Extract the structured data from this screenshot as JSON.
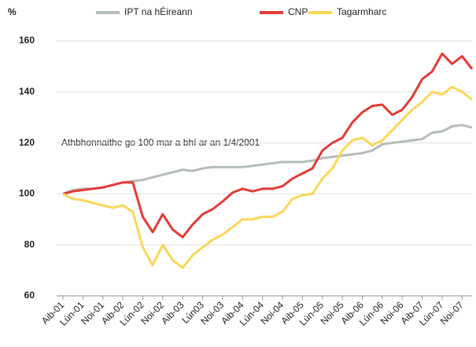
{
  "chart_data": {
    "type": "line",
    "y_label": "%",
    "annotation": "Athbhonnaithe go 100 mar a bhí ar an 1/4/2001",
    "categories": [
      "Aib-01",
      null,
      "Lún-01",
      null,
      "Noi-01",
      null,
      "Aib-02",
      null,
      "Lún-02",
      null,
      "Noi-02",
      null,
      "Aib-03",
      null,
      "Lún03",
      null,
      "Noi-03",
      null,
      "Aib-04",
      null,
      "Lún-04",
      null,
      "Noi-04",
      null,
      "Aib-05",
      null,
      "Lún-05",
      null,
      "Noi-05",
      null,
      "Aib-06",
      null,
      "Lún-06",
      null,
      "Noi-06",
      null,
      "Aib-07",
      null,
      "Lún-07",
      null,
      "Noi-07",
      null
    ],
    "series": [
      {
        "name": "IPT na hÉireann",
        "color": "#b5bdb8",
        "values": [
          100,
          101.5,
          102,
          102,
          102.5,
          103.5,
          104.5,
          105,
          105.5,
          106.5,
          107.5,
          108.5,
          109.5,
          109,
          110,
          110.5,
          110.5,
          110.5,
          110.5,
          111,
          111.5,
          112,
          112.5,
          112.5,
          112.5,
          113,
          114,
          114.5,
          115,
          115.5,
          116,
          117,
          119.5,
          120,
          120.5,
          121,
          121.5,
          124,
          124.5,
          126.5,
          127,
          126
        ]
      },
      {
        "name": "CNP",
        "color": "#e23b35",
        "values": [
          100,
          101,
          101.5,
          102,
          102.5,
          103.5,
          104.5,
          104.5,
          91,
          85,
          92,
          86,
          83,
          88,
          92,
          94,
          97,
          100.5,
          102,
          101,
          102,
          102,
          103,
          106,
          108,
          110,
          117,
          120,
          122,
          128,
          132,
          134.5,
          135,
          131,
          133,
          138,
          145,
          148,
          155,
          151,
          154,
          149
        ]
      },
      {
        "name": "Tagarmharc",
        "color": "#fcd65a",
        "values": [
          100,
          98,
          97.5,
          96.5,
          95.5,
          94.5,
          95.5,
          93,
          79,
          72,
          80,
          74,
          71,
          76,
          79,
          82,
          84,
          87,
          90,
          90,
          91,
          91,
          93,
          98,
          99.5,
          100,
          106,
          110,
          117,
          121,
          122,
          119,
          121,
          125,
          129,
          133,
          136,
          140,
          139,
          142,
          140,
          137
        ]
      }
    ],
    "ylim": [
      60,
      160
    ],
    "yticks": [
      60,
      80,
      100,
      120,
      140,
      160
    ],
    "grid": true,
    "legend": "top"
  }
}
